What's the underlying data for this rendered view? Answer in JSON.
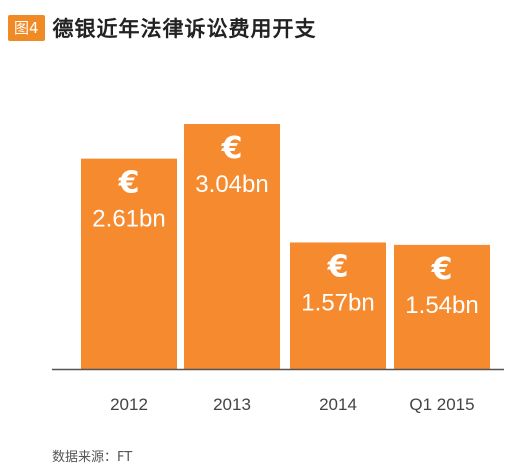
{
  "figure": {
    "badge": "图4",
    "title": "德银近年法律诉讼费用开支",
    "source": "数据来源：FT"
  },
  "colors": {
    "bar": "#f58a2e",
    "axis": "#555555",
    "label": "#444444",
    "badge": "#f08a24"
  },
  "icons": {
    "currency": "euro-icon"
  },
  "chart_data": {
    "type": "bar",
    "categories": [
      "2012",
      "2013",
      "2014",
      "Q1 2015"
    ],
    "values": [
      2.61,
      3.04,
      1.57,
      1.54
    ],
    "value_labels": [
      "2.61bn",
      "3.04bn",
      "1.57bn",
      "1.54bn"
    ],
    "currency_symbol": "€",
    "ylim": [
      0,
      3.5
    ],
    "grid": false,
    "legend": "none"
  }
}
